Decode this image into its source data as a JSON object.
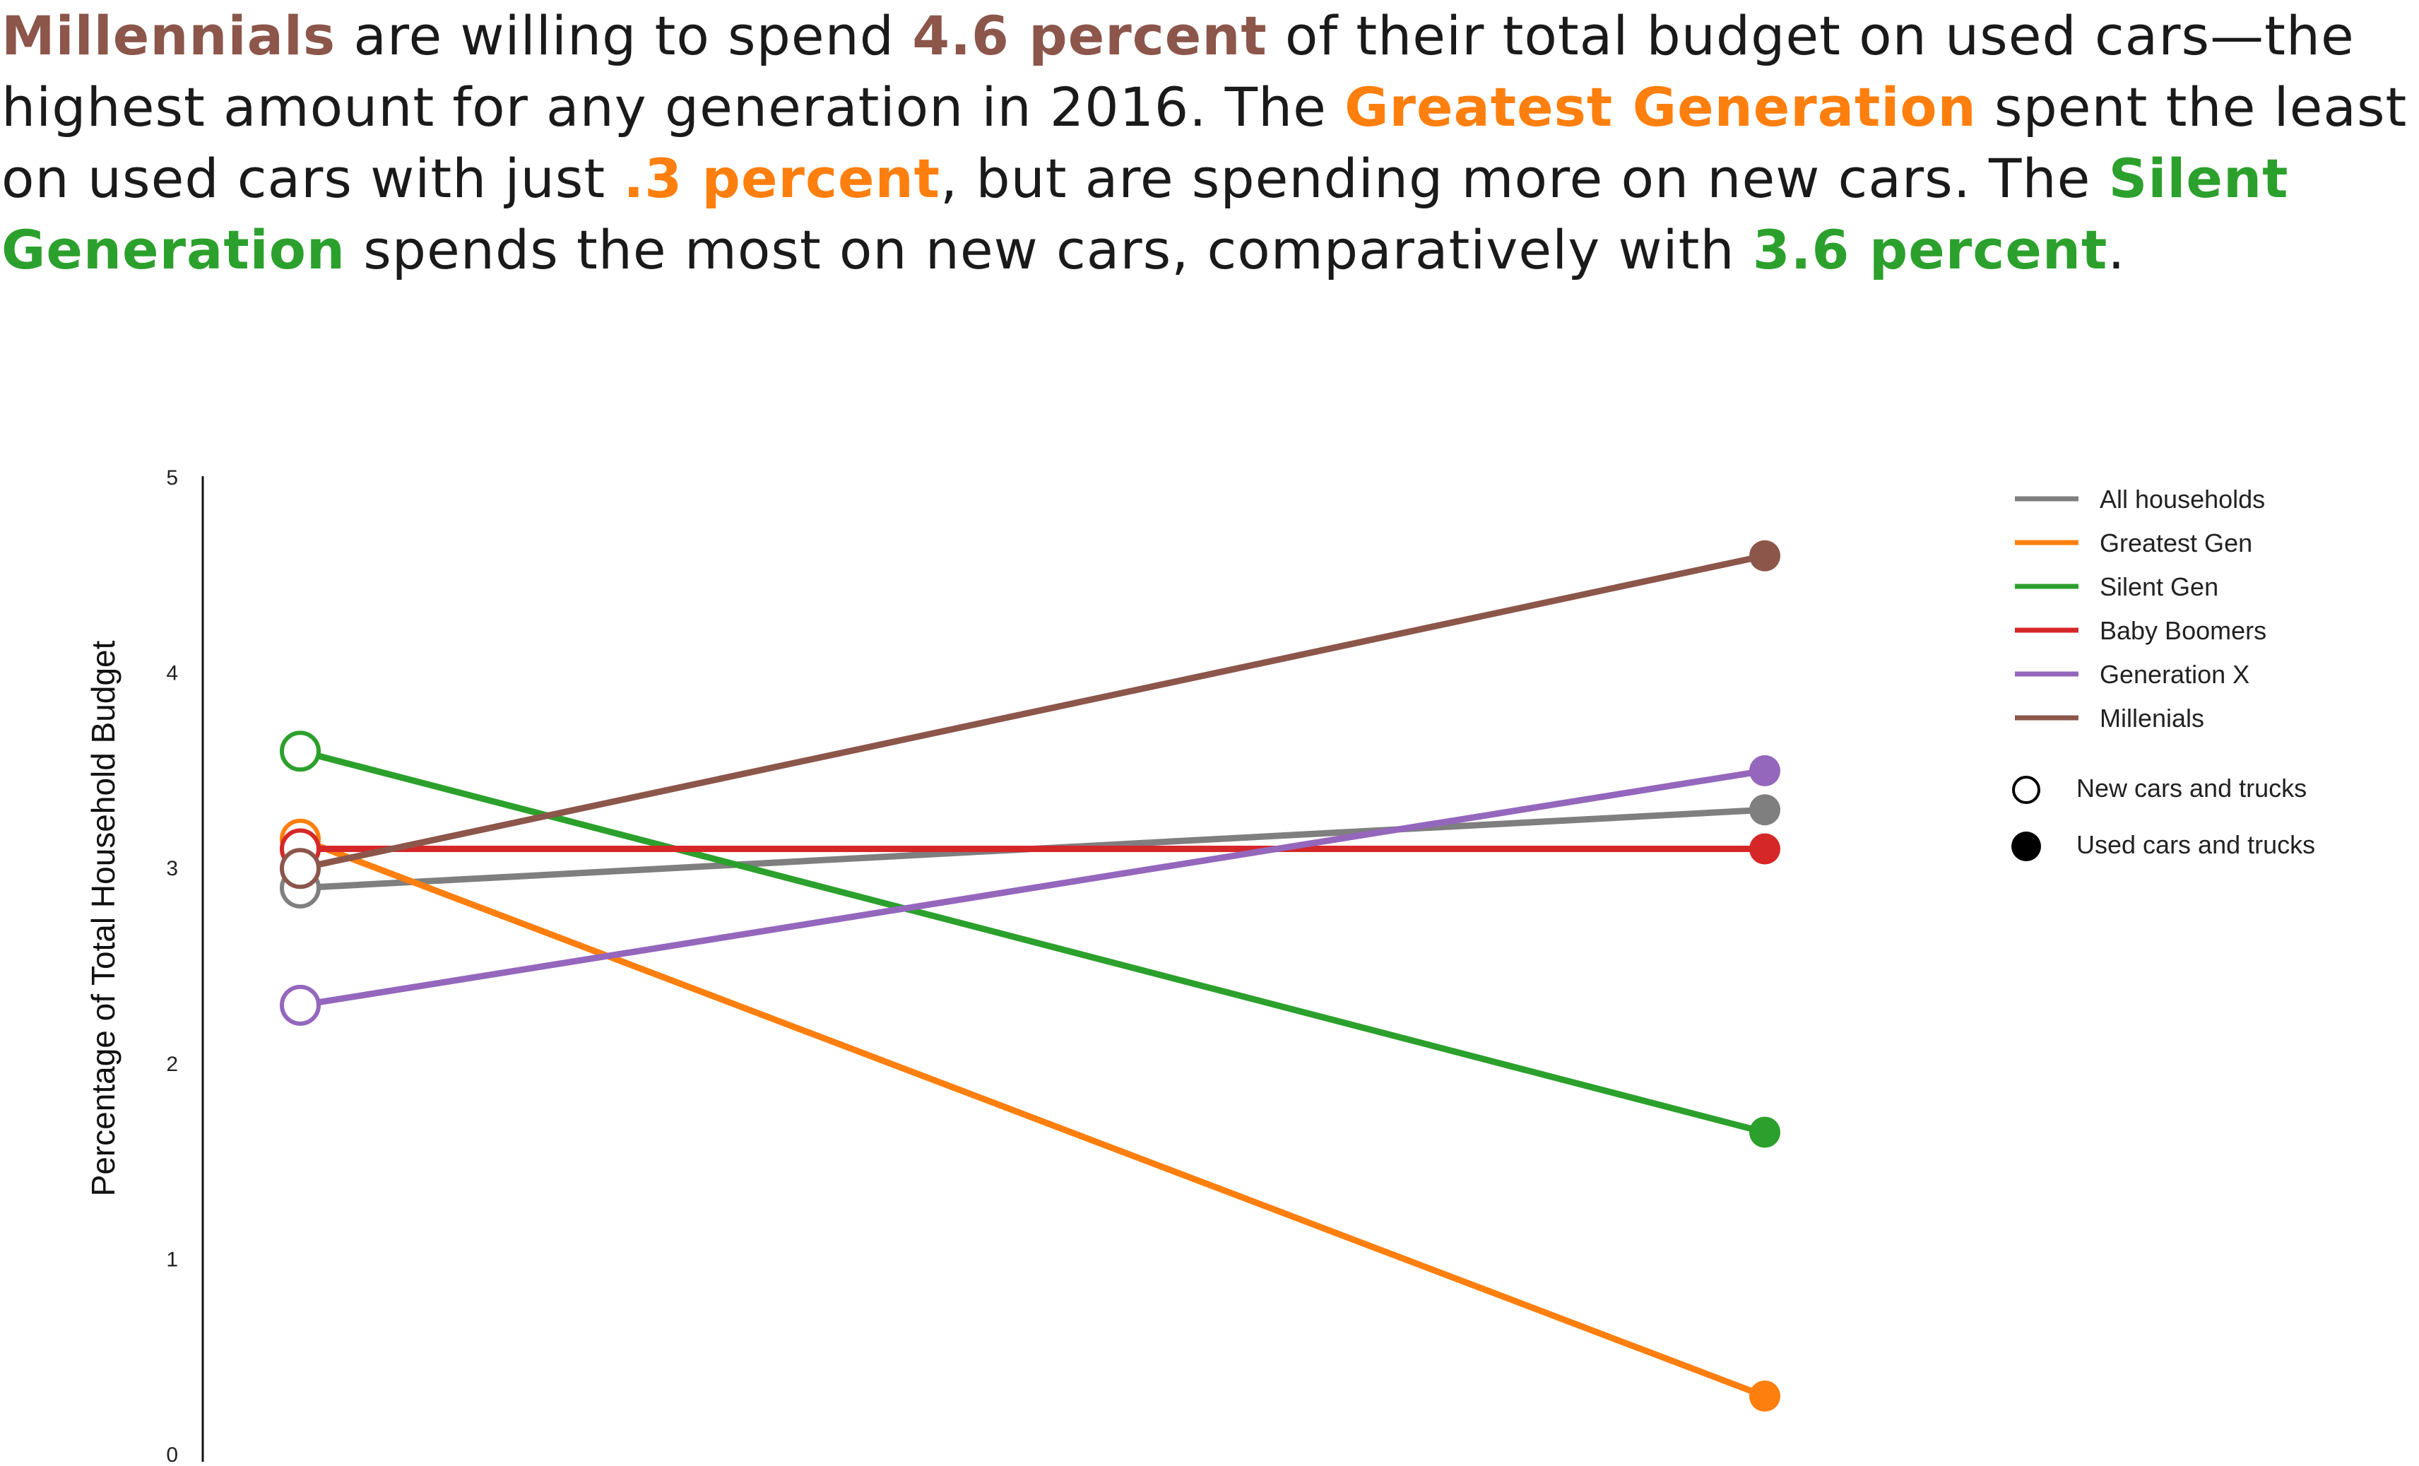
{
  "headline": {
    "segments": [
      {
        "text": "Millennials",
        "color": "#8c564b",
        "bold": true
      },
      {
        "text": " are willing to spend ",
        "color": "",
        "bold": false
      },
      {
        "text": "4.6 percent",
        "color": "#8c564b",
        "bold": true
      },
      {
        "text": " of their total budget on used cars—the highest amount for any generation in 2016. The ",
        "color": "",
        "bold": false
      },
      {
        "text": "Greatest Generation",
        "color": "#ff7f0e",
        "bold": true
      },
      {
        "text": " spent the least on used cars with just ",
        "color": "",
        "bold": false
      },
      {
        "text": ".3 percent",
        "color": "#ff7f0e",
        "bold": true
      },
      {
        "text": ", but are spending more on new cars. The ",
        "color": "",
        "bold": false
      },
      {
        "text": "Silent Generation",
        "color": "#2ca02c",
        "bold": true
      },
      {
        "text": " spends the most on new cars, comparatively with ",
        "color": "",
        "bold": false
      },
      {
        "text": "3.6 percent",
        "color": "#2ca02c",
        "bold": true
      },
      {
        "text": ".",
        "color": "",
        "bold": false
      }
    ]
  },
  "chart_data": {
    "type": "line",
    "ylabel": "Percentage of Total Household Budget",
    "ylim": [
      0,
      5
    ],
    "yticks": [
      "0",
      "1",
      "2",
      "3",
      "4",
      "5"
    ],
    "x": [
      "New cars and trucks",
      "Used cars and trucks"
    ],
    "grid": false,
    "legend_position": "top-right",
    "series": [
      {
        "name": "All households",
        "color": "#7f7f7f",
        "values": [
          2.9,
          3.3
        ]
      },
      {
        "name": "Greatest Gen",
        "color": "#ff7f0e",
        "values": [
          3.15,
          0.3
        ]
      },
      {
        "name": "Silent Gen",
        "color": "#2ca02c",
        "values": [
          3.6,
          1.65
        ]
      },
      {
        "name": "Baby Boomers",
        "color": "#d62728",
        "values": [
          3.1,
          3.1
        ]
      },
      {
        "name": "Generation X",
        "color": "#9467bd",
        "values": [
          2.3,
          3.5
        ]
      },
      {
        "name": "Millenials",
        "color": "#8c564b",
        "values": [
          3.0,
          4.6
        ]
      }
    ],
    "marker_legend": [
      {
        "label": "New cars and trucks",
        "style": "open"
      },
      {
        "label": "Used cars and trucks",
        "style": "filled"
      }
    ]
  }
}
